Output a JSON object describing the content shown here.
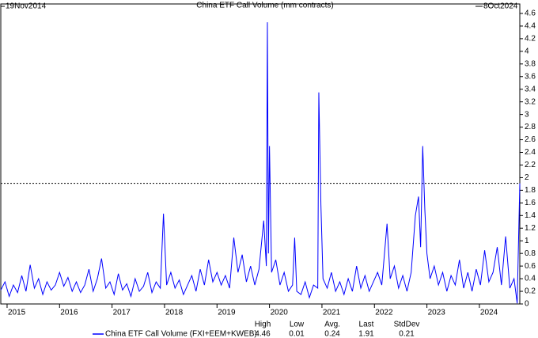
{
  "chart_data": {
    "type": "line",
    "title": "China ETF Call Volume (mm contracts)",
    "start_label": "19Nov2014",
    "end_label": "8Oct2024",
    "x": [
      2014.88,
      2014.96,
      2015.04,
      2015.12,
      2015.2,
      2015.28,
      2015.36,
      2015.44,
      2015.52,
      2015.6,
      2015.68,
      2015.76,
      2015.84,
      2015.92,
      2016.0,
      2016.08,
      2016.16,
      2016.24,
      2016.32,
      2016.4,
      2016.48,
      2016.56,
      2016.64,
      2016.72,
      2016.8,
      2016.88,
      2016.96,
      2017.04,
      2017.12,
      2017.2,
      2017.28,
      2017.36,
      2017.44,
      2017.52,
      2017.6,
      2017.68,
      2017.76,
      2017.84,
      2017.92,
      2017.98,
      2018.04,
      2018.12,
      2018.2,
      2018.28,
      2018.36,
      2018.44,
      2018.52,
      2018.6,
      2018.68,
      2018.76,
      2018.84,
      2018.92,
      2019.0,
      2019.08,
      2019.16,
      2019.24,
      2019.32,
      2019.4,
      2019.48,
      2019.56,
      2019.64,
      2019.72,
      2019.8,
      2019.89,
      2019.94,
      2019.96,
      2019.98,
      2020.0,
      2020.04,
      2020.12,
      2020.2,
      2020.28,
      2020.36,
      2020.44,
      2020.48,
      2020.52,
      2020.6,
      2020.68,
      2020.76,
      2020.84,
      2020.92,
      2020.94,
      2020.98,
      2021.02,
      2021.1,
      2021.18,
      2021.26,
      2021.34,
      2021.42,
      2021.5,
      2021.58,
      2021.66,
      2021.74,
      2021.82,
      2021.9,
      2021.98,
      2022.06,
      2022.14,
      2022.24,
      2022.3,
      2022.38,
      2022.46,
      2022.54,
      2022.62,
      2022.7,
      2022.78,
      2022.84,
      2022.88,
      2022.92,
      2022.96,
      2023.0,
      2023.06,
      2023.14,
      2023.22,
      2023.3,
      2023.38,
      2023.46,
      2023.54,
      2023.62,
      2023.7,
      2023.78,
      2023.86,
      2023.94,
      2024.02,
      2024.1,
      2024.18,
      2024.26,
      2024.34,
      2024.42,
      2024.5,
      2024.58,
      2024.66,
      2024.72,
      2024.77
    ],
    "series": [
      {
        "name": "China ETF Call Volume (FXI+EEM+KWEB)",
        "color": "#0000ff",
        "values": [
          0.22,
          0.35,
          0.12,
          0.3,
          0.18,
          0.45,
          0.2,
          0.62,
          0.25,
          0.4,
          0.15,
          0.35,
          0.22,
          0.3,
          0.5,
          0.28,
          0.42,
          0.2,
          0.35,
          0.18,
          0.3,
          0.55,
          0.2,
          0.4,
          0.72,
          0.25,
          0.35,
          0.15,
          0.48,
          0.22,
          0.32,
          0.12,
          0.4,
          0.2,
          0.28,
          0.5,
          0.18,
          0.35,
          0.25,
          1.43,
          0.3,
          0.5,
          0.25,
          0.38,
          0.15,
          0.3,
          0.45,
          0.2,
          0.55,
          0.3,
          0.7,
          0.35,
          0.5,
          0.3,
          0.45,
          0.25,
          1.05,
          0.5,
          0.78,
          0.35,
          0.6,
          0.3,
          0.55,
          1.32,
          0.6,
          4.46,
          0.8,
          2.5,
          0.5,
          0.7,
          0.3,
          0.5,
          0.2,
          0.3,
          1.05,
          0.2,
          0.15,
          0.35,
          0.1,
          0.3,
          0.25,
          3.35,
          1.57,
          0.4,
          0.25,
          0.5,
          0.2,
          0.35,
          0.15,
          0.4,
          0.2,
          0.6,
          0.25,
          0.45,
          0.2,
          0.35,
          0.5,
          0.3,
          1.27,
          0.4,
          0.6,
          0.25,
          0.45,
          0.2,
          0.5,
          1.4,
          1.7,
          0.9,
          2.5,
          1.5,
          0.8,
          0.4,
          0.6,
          0.3,
          0.5,
          0.2,
          0.45,
          0.3,
          0.7,
          0.25,
          0.5,
          0.2,
          0.55,
          0.3,
          0.85,
          0.35,
          0.5,
          0.9,
          0.3,
          1.07,
          0.25,
          0.4,
          0.01,
          1.91
        ]
      }
    ],
    "xlim": [
      2014.88,
      2024.77
    ],
    "xticks": [
      2015,
      2016,
      2017,
      2018,
      2019,
      2020,
      2021,
      2022,
      2023,
      2024
    ],
    "ylim": [
      0,
      4.75
    ],
    "yticks": [
      0,
      0.2,
      0.4,
      0.6,
      0.8,
      1,
      1.2,
      1.4,
      1.6,
      1.8,
      2,
      2.2,
      2.4,
      2.6,
      2.8,
      3,
      3.2,
      3.4,
      3.6,
      3.8,
      4,
      4.2,
      4.4,
      4.6
    ],
    "stats": {
      "headers": [
        "High",
        "Low",
        "Avg.",
        "Last",
        "StdDev"
      ],
      "values": [
        4.46,
        0.01,
        0.24,
        1.91,
        0.21
      ]
    }
  }
}
